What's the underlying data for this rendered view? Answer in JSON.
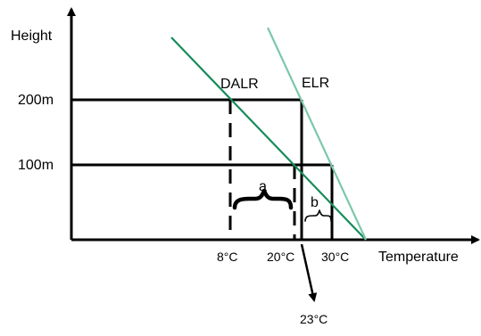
{
  "axes": {
    "y_label": "Height",
    "x_label": "Temperature"
  },
  "height_labels": {
    "h200": "200m",
    "h100": "100m"
  },
  "temperature_labels": {
    "t8": "8°C",
    "t20": "20°C",
    "t23": "23°C",
    "t30": "30°C"
  },
  "lines": {
    "dalr": "DALR",
    "elr": "ELR"
  },
  "brackets": {
    "a": "a",
    "b": "b"
  },
  "colors": {
    "dalr_line": "#168c5a",
    "elr_line": "#7bc8a8",
    "axis": "#000000",
    "guide": "#000000"
  }
}
